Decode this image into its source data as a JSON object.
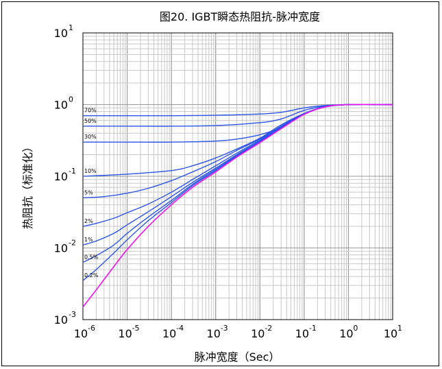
{
  "chart_data": {
    "type": "line",
    "title": "图20. IGBT瞬态热阻抗-脉冲宽度",
    "xlabel": "脉冲宽度（Sec）",
    "ylabel": "热阻抗（标准化）",
    "xscale": "log",
    "yscale": "log",
    "xlim": [
      1e-06,
      10
    ],
    "ylim": [
      0.001,
      10
    ],
    "grid": true,
    "x_ticks": [
      {
        "base": "10",
        "exp": "-6"
      },
      {
        "base": "10",
        "exp": "-5"
      },
      {
        "base": "10",
        "exp": "-4"
      },
      {
        "base": "10",
        "exp": "-3"
      },
      {
        "base": "10",
        "exp": "-2"
      },
      {
        "base": "10",
        "exp": "-1"
      },
      {
        "base": "10",
        "exp": "0"
      },
      {
        "base": "10",
        "exp": "1"
      }
    ],
    "y_ticks": [
      {
        "base": "10",
        "exp": "-3"
      },
      {
        "base": "10",
        "exp": "-2"
      },
      {
        "base": "10",
        "exp": "-1"
      },
      {
        "base": "10",
        "exp": "0"
      },
      {
        "base": "10",
        "exp": "1"
      }
    ],
    "series": [
      {
        "name": "70%",
        "color": "#2b55e8",
        "x": [
          1e-06,
          1e-05,
          0.0001,
          0.001,
          0.01,
          0.03,
          0.1,
          0.3,
          1,
          10
        ],
        "y": [
          0.7,
          0.7,
          0.7,
          0.71,
          0.74,
          0.78,
          0.9,
          0.97,
          1.0,
          1.0
        ]
      },
      {
        "name": "50%",
        "color": "#2b55e8",
        "x": [
          1e-06,
          1e-05,
          0.0001,
          0.001,
          0.01,
          0.03,
          0.1,
          0.3,
          1,
          10
        ],
        "y": [
          0.5,
          0.5,
          0.5,
          0.51,
          0.56,
          0.63,
          0.83,
          0.95,
          1.0,
          1.0
        ]
      },
      {
        "name": "30%",
        "color": "#2b55e8",
        "x": [
          1e-06,
          1e-05,
          0.0001,
          0.001,
          0.003,
          0.01,
          0.03,
          0.1,
          0.3,
          1,
          10
        ],
        "y": [
          0.3,
          0.3,
          0.3,
          0.31,
          0.33,
          0.38,
          0.48,
          0.75,
          0.93,
          1.0,
          1.0
        ]
      },
      {
        "name": "10%",
        "color": "#2b55e8",
        "x": [
          1e-06,
          1e-05,
          0.0001,
          0.0003,
          0.001,
          0.003,
          0.01,
          0.03,
          0.1,
          0.3,
          1,
          10
        ],
        "y": [
          0.1,
          0.107,
          0.12,
          0.14,
          0.18,
          0.24,
          0.34,
          0.52,
          0.75,
          0.93,
          1.0,
          1.0
        ]
      },
      {
        "name": "5%",
        "color": "#2b55e8",
        "x": [
          1e-06,
          3e-06,
          1e-05,
          3e-05,
          0.0001,
          0.0003,
          0.001,
          0.003,
          0.01,
          0.03,
          0.1,
          0.3,
          1,
          10
        ],
        "y": [
          0.05,
          0.052,
          0.058,
          0.068,
          0.087,
          0.115,
          0.16,
          0.23,
          0.33,
          0.5,
          0.75,
          0.93,
          1.0,
          1.0
        ]
      },
      {
        "name": "2%",
        "color": "#2b55e8",
        "x": [
          1e-06,
          2e-06,
          5e-06,
          1e-05,
          3e-05,
          0.0001,
          0.0003,
          0.001,
          0.003,
          0.01,
          0.03,
          0.1,
          0.3,
          1,
          10
        ],
        "y": [
          0.02,
          0.022,
          0.026,
          0.031,
          0.041,
          0.06,
          0.09,
          0.14,
          0.21,
          0.32,
          0.49,
          0.75,
          0.93,
          1.0,
          1.0
        ]
      },
      {
        "name": "1%",
        "color": "#2b55e8",
        "x": [
          1e-06,
          2e-06,
          5e-06,
          1e-05,
          3e-05,
          0.0001,
          0.0003,
          0.001,
          0.003,
          0.01,
          0.03,
          0.1,
          0.3,
          1,
          10
        ],
        "y": [
          0.011,
          0.0125,
          0.016,
          0.021,
          0.032,
          0.052,
          0.082,
          0.13,
          0.2,
          0.31,
          0.48,
          0.74,
          0.93,
          1.0,
          1.0
        ]
      },
      {
        "name": "0.5%",
        "color": "#2b55e8",
        "x": [
          1e-06,
          2e-06,
          5e-06,
          1e-05,
          3e-05,
          0.0001,
          0.0003,
          0.001,
          0.003,
          0.01,
          0.03,
          0.1,
          0.3,
          1,
          10
        ],
        "y": [
          0.0063,
          0.0078,
          0.011,
          0.016,
          0.027,
          0.046,
          0.077,
          0.125,
          0.195,
          0.305,
          0.475,
          0.74,
          0.93,
          1.0,
          1.0
        ]
      },
      {
        "name": "0.2%",
        "color": "#2b55e8",
        "x": [
          1e-06,
          2e-06,
          5e-06,
          1e-05,
          3e-05,
          0.0001,
          0.0003,
          0.001,
          0.003,
          0.01,
          0.03,
          0.1,
          0.3,
          1,
          10
        ],
        "y": [
          0.0035,
          0.005,
          0.0085,
          0.013,
          0.024,
          0.043,
          0.074,
          0.12,
          0.19,
          0.3,
          0.47,
          0.735,
          0.93,
          1.0,
          1.0
        ]
      },
      {
        "name": "",
        "color": "#ee11ee",
        "x": [
          1e-06,
          2e-06,
          5e-06,
          1e-05,
          3e-05,
          0.0001,
          0.0003,
          0.001,
          0.003,
          0.01,
          0.03,
          0.1,
          0.3,
          1,
          10
        ],
        "y": [
          0.0015,
          0.0026,
          0.0055,
          0.0095,
          0.02,
          0.04,
          0.07,
          0.115,
          0.185,
          0.295,
          0.46,
          0.73,
          0.93,
          1.0,
          1.0
        ]
      }
    ]
  }
}
